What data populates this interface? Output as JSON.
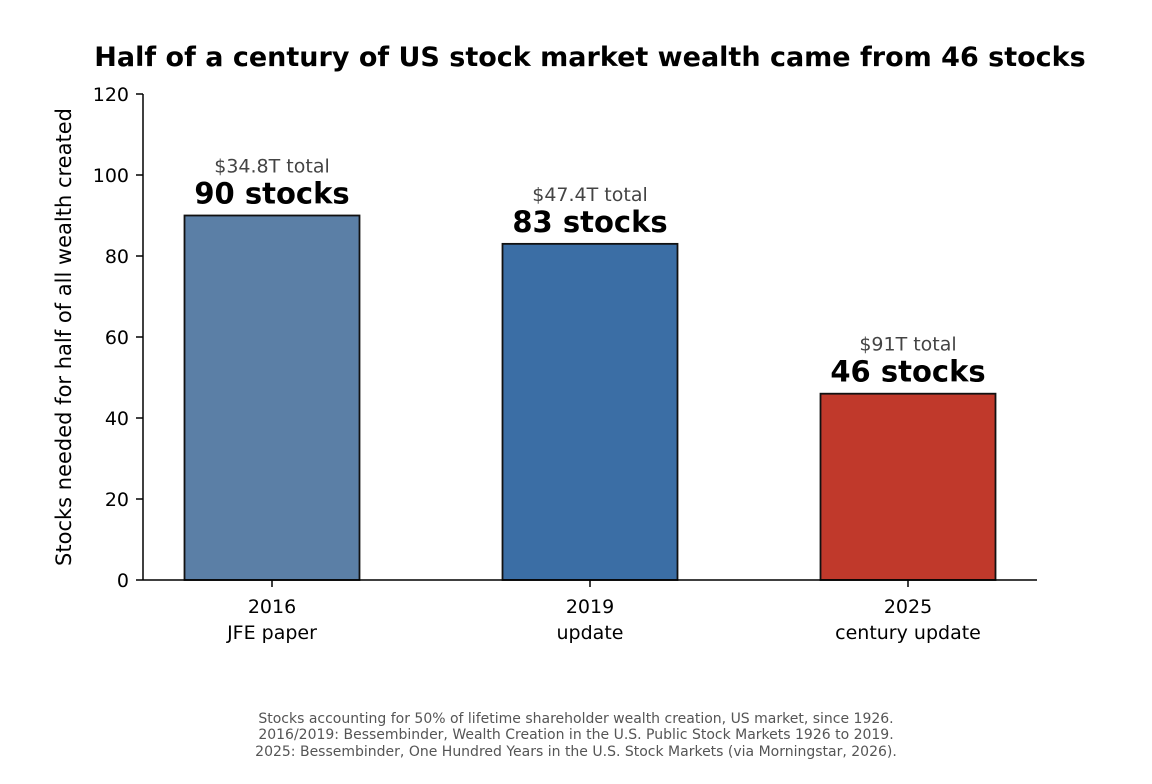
{
  "chart_data": {
    "type": "bar",
    "title": "Half of a century of US stock market wealth came from 46 stocks",
    "ylabel": "Stocks needed for half of all wealth created",
    "xlabel": "",
    "ylim": [
      0,
      120
    ],
    "yticks": [
      0,
      20,
      40,
      60,
      80,
      100,
      120
    ],
    "grid": false,
    "categories": [
      {
        "year": "2016",
        "label": "JFE paper"
      },
      {
        "year": "2019",
        "label": "update"
      },
      {
        "year": "2025",
        "label": "century update"
      }
    ],
    "values": [
      90,
      83,
      46
    ],
    "value_labels": [
      "90 stocks",
      "83 stocks",
      "46 stocks"
    ],
    "totals": [
      "$34.8T total",
      "$47.4T total",
      "$91T total"
    ],
    "colors": [
      "#5b7fa6",
      "#3b6ea5",
      "#c0392b"
    ],
    "edge_color": "#111111"
  },
  "footnote": [
    "Stocks accounting for 50% of lifetime shareholder wealth creation, US market, since 1926.",
    "2016/2019: Bessembinder, Wealth Creation in the U.S. Public Stock Markets 1926 to 2019.",
    "2025: Bessembinder, One Hundred Years in the U.S. Stock Markets (via Morningstar, 2026)."
  ]
}
